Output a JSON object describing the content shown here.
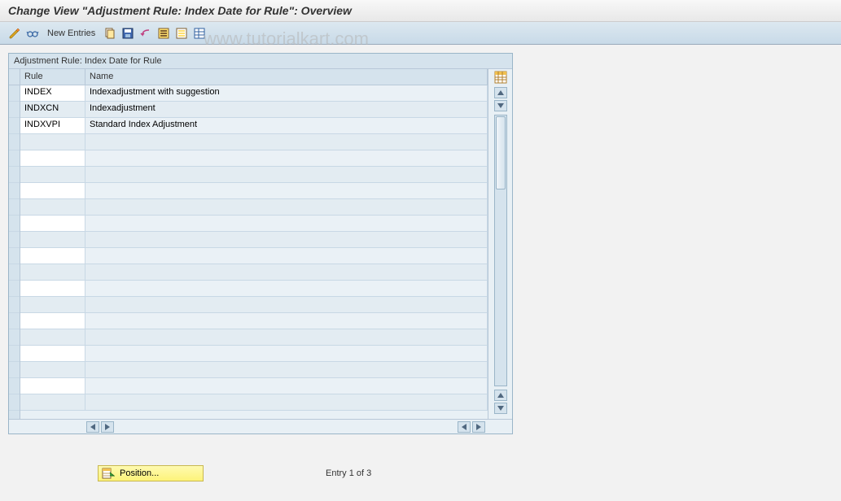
{
  "title": "Change View \"Adjustment Rule: Index Date for Rule\": Overview",
  "toolbar": {
    "new_entries": "New Entries"
  },
  "watermark": "www.tutorialkart.com",
  "panel": {
    "header": "Adjustment Rule: Index Date for Rule",
    "columns": {
      "rule": "Rule",
      "name": "Name"
    },
    "rows": [
      {
        "rule": "INDEX",
        "name": "Indexadjustment with suggestion"
      },
      {
        "rule": "INDXCN",
        "name": "Indexadjustment"
      },
      {
        "rule": "INDXVPI",
        "name": "Standard Index Adjustment"
      }
    ],
    "empty_rows": 17
  },
  "footer": {
    "position_label": "Position...",
    "entry_text": "Entry 1 of 3"
  },
  "colors": {
    "panel_bg": "#e8f0f5",
    "header_bg": "#d5e3ed",
    "border": "#9ab5c8"
  }
}
